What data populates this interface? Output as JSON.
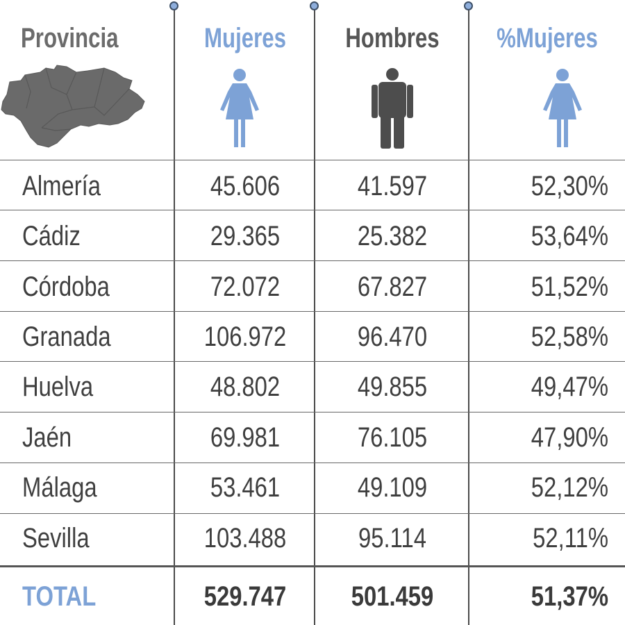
{
  "headers": {
    "provincia": "Provincia",
    "mujeres": "Mujeres",
    "hombres": "Hombres",
    "pct_mujeres": "%Mujeres"
  },
  "icons": {
    "map": "andalucia-map-icon",
    "mujeres": "woman-icon",
    "hombres": "man-icon",
    "pct_mujeres": "woman-icon"
  },
  "colors": {
    "accent_blue": "#7da2d6",
    "header_dark": "#555555",
    "header_grey": "#6b6b6b",
    "text": "#3f3f3f",
    "map_grey": "#6a6a6a",
    "man_grey": "#4d4d4d"
  },
  "rows": [
    {
      "provincia": "Almería",
      "mujeres": "45.606",
      "hombres": "41.597",
      "pct_mujeres": "52,30%"
    },
    {
      "provincia": "Cádiz",
      "mujeres": "29.365",
      "hombres": "25.382",
      "pct_mujeres": "53,64%"
    },
    {
      "provincia": "Córdoba",
      "mujeres": "72.072",
      "hombres": "67.827",
      "pct_mujeres": "51,52%"
    },
    {
      "provincia": "Granada",
      "mujeres": "106.972",
      "hombres": "96.470",
      "pct_mujeres": "52,58%"
    },
    {
      "provincia": "Huelva",
      "mujeres": "48.802",
      "hombres": "49.855",
      "pct_mujeres": "49,47%"
    },
    {
      "provincia": "Jaén",
      "mujeres": "69.981",
      "hombres": "76.105",
      "pct_mujeres": "47,90%"
    },
    {
      "provincia": "Málaga",
      "mujeres": "53.461",
      "hombres": "49.109",
      "pct_mujeres": "52,12%"
    },
    {
      "provincia": "Sevilla",
      "mujeres": "103.488",
      "hombres": "95.114",
      "pct_mujeres": "52,11%"
    }
  ],
  "total": {
    "provincia": "TOTAL",
    "mujeres": "529.747",
    "hombres": "501.459",
    "pct_mujeres": "51,37%"
  },
  "chart_data": {
    "type": "table",
    "columns": [
      "Provincia",
      "Mujeres",
      "Hombres",
      "%Mujeres"
    ],
    "categories": [
      "Almería",
      "Cádiz",
      "Córdoba",
      "Granada",
      "Huelva",
      "Jaén",
      "Málaga",
      "Sevilla"
    ],
    "series": [
      {
        "name": "Mujeres",
        "values": [
          45606,
          29365,
          72072,
          106972,
          48802,
          69981,
          53461,
          103488
        ]
      },
      {
        "name": "Hombres",
        "values": [
          41597,
          25382,
          67827,
          96470,
          49855,
          76105,
          49109,
          95114
        ]
      },
      {
        "name": "%Mujeres",
        "values": [
          52.3,
          53.64,
          51.52,
          52.58,
          49.47,
          47.9,
          52.12,
          52.11
        ]
      }
    ],
    "totals": {
      "Mujeres": 529747,
      "Hombres": 501459,
      "%Mujeres": 51.37
    }
  }
}
